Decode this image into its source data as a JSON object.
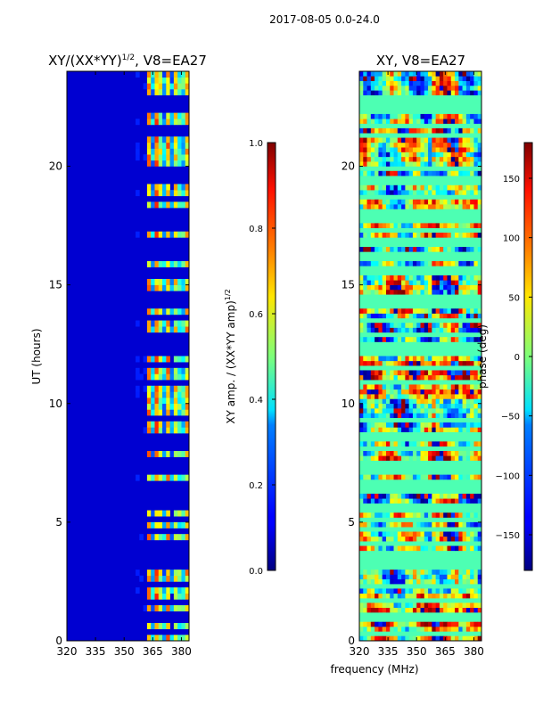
{
  "figure_title": "2017-08-05 0.0-24.0",
  "shared_xlabel": "frequency (MHz)",
  "chart_data": [
    {
      "type": "heatmap",
      "title": "XY/(XX*YY)^1/2, V8=EA27",
      "title_main": "XY/(XX*YY)",
      "title_exp": "1/2",
      "title_tail": ", V8=EA27",
      "xlabel": "frequency (MHz)",
      "ylabel": "UT (hours)",
      "xlim": [
        320,
        384
      ],
      "ylim": [
        0,
        24
      ],
      "xticks": [
        320,
        335,
        350,
        365,
        380
      ],
      "yticks": [
        0,
        5,
        10,
        15,
        20
      ],
      "colorbar": {
        "label": "XY amp. / (XX*YY amp)^1/2",
        "label_main": "XY amp. / (XX*YY amp)",
        "label_exp": "1/2",
        "range": [
          0.0,
          1.0
        ],
        "ticks": [
          "0.0",
          "0.2",
          "0.4",
          "0.6",
          "0.8",
          "1.0"
        ],
        "colormap": "jet"
      },
      "description_values": {
        "background_level": 0.1,
        "bright_band_mhz": [
          362,
          384
        ],
        "bright_band_level": 0.55
      }
    },
    {
      "type": "heatmap",
      "title": "XY, V8=EA27",
      "xlabel": "frequency (MHz)",
      "ylabel": "",
      "xlim": [
        320,
        384
      ],
      "ylim": [
        0,
        24
      ],
      "xticks": [
        320,
        335,
        350,
        365,
        380
      ],
      "yticks": [
        0,
        5,
        10,
        15,
        20
      ],
      "colorbar": {
        "label": "phase (deg)",
        "range": [
          -180,
          180
        ],
        "ticks": [
          "−150",
          "−100",
          "−50",
          "0",
          "50",
          "100",
          "150"
        ],
        "colormap": "jet"
      }
    }
  ],
  "flagged_hours": [
    0.3,
    0.8,
    1.1,
    1.6,
    2.3,
    3.1,
    3.35,
    3.5,
    3.75,
    4.1,
    4.7,
    5.1,
    5.5,
    5.75,
    6.2,
    6.45,
    6.7,
    7.1,
    7.3,
    7.5,
    8.0,
    8.4,
    8.6,
    9.3,
    10.9,
    11.6,
    12.1,
    12.25,
    12.4,
    12.6,
    12.9,
    13.5,
    14.1,
    14.3,
    14.6,
    15.4,
    15.7,
    16.0,
    16.3,
    16.6,
    16.9,
    17.3,
    17.6,
    17.9,
    18.1,
    18.6,
    19.3,
    19.5,
    19.9,
    21.3,
    21.7,
    22.3,
    22.5,
    22.7,
    22.9
  ]
}
